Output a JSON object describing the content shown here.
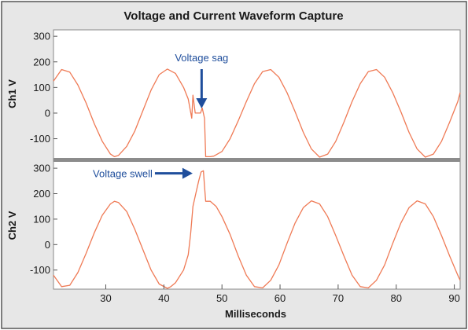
{
  "chart_data": {
    "type": "line",
    "title": "Voltage and Current Waveform Capture",
    "xlabel": "Milliseconds",
    "xlim": [
      21,
      91
    ],
    "x_ticks": [
      30,
      40,
      50,
      60,
      70,
      80,
      90
    ],
    "line_color": "#ef7a55",
    "annotation_color": "#1f4e9c",
    "panels": [
      {
        "ylabel": "Ch1 V",
        "ylim": [
          -175,
          325
        ],
        "y_ticks": [
          300,
          200,
          100,
          0,
          -100
        ],
        "series": [
          {
            "x": [
              21.0,
              22.4,
              23.8,
              25.2,
              26.6,
              28.0,
              29.4,
              30.8,
              31.5,
              32.2,
              33.6,
              35.0,
              36.4,
              37.8,
              39.2,
              40.6,
              42.0,
              43.4,
              44.2,
              44.8,
              45.0,
              45.4,
              45.8,
              46.3,
              46.6,
              47.0,
              47.2,
              47.4,
              48.0,
              48.6,
              50.0,
              51.4,
              52.8,
              54.2,
              55.6,
              57.0,
              58.4,
              59.8,
              61.2,
              62.6,
              64.0,
              65.4,
              66.8,
              68.2,
              69.6,
              71.0,
              72.4,
              73.8,
              75.2,
              76.6,
              78.0,
              79.4,
              80.8,
              82.2,
              83.6,
              85.0,
              86.4,
              87.8,
              89.2,
              90.6,
              91.0
            ],
            "y": [
              125,
              170,
              160,
              110,
              40,
              -40,
              -110,
              -160,
              -170,
              -165,
              -130,
              -70,
              10,
              90,
              150,
              172,
              155,
              100,
              55,
              -20,
              70,
              0,
              0,
              0,
              20,
              -20,
              -170,
              -170,
              -170,
              -168,
              -150,
              -100,
              -30,
              45,
              115,
              162,
              170,
              140,
              80,
              5,
              -75,
              -140,
              -172,
              -160,
              -110,
              -35,
              45,
              115,
              162,
              170,
              140,
              80,
              5,
              -75,
              -140,
              -172,
              -160,
              -110,
              -35,
              45,
              80
            ]
          }
        ],
        "annotation": {
          "text": "Voltage sag",
          "x": 46.5,
          "y": 0
        }
      },
      {
        "ylabel": "Ch2 V",
        "ylim": [
          -175,
          325
        ],
        "y_ticks": [
          300,
          200,
          100,
          0,
          -100
        ],
        "series": [
          {
            "x": [
              21.0,
              22.4,
              23.8,
              25.2,
              26.6,
              28.0,
              29.4,
              30.8,
              31.5,
              32.2,
              33.6,
              35.0,
              36.4,
              37.8,
              39.2,
              40.6,
              41.2,
              42.0,
              43.4,
              44.2,
              44.6,
              45.0,
              45.5,
              46.0,
              46.4,
              46.8,
              47.0,
              47.2,
              48.0,
              49.0,
              50.0,
              51.4,
              52.8,
              54.2,
              55.6,
              57.0,
              58.4,
              59.8,
              61.2,
              62.6,
              64.0,
              65.4,
              66.8,
              68.2,
              69.6,
              71.0,
              72.4,
              73.8,
              75.2,
              76.6,
              78.0,
              79.4,
              80.8,
              82.2,
              83.6,
              85.0,
              86.4,
              87.8,
              89.2,
              90.6,
              91.0
            ],
            "y": [
              -120,
              -165,
              -160,
              -110,
              -35,
              45,
              115,
              160,
              170,
              165,
              130,
              60,
              -20,
              -100,
              -155,
              -172,
              -165,
              -150,
              -100,
              -40,
              40,
              150,
              200,
              250,
              285,
              290,
              230,
              170,
              170,
              150,
              110,
              40,
              -45,
              -120,
              -165,
              -170,
              -140,
              -80,
              5,
              85,
              145,
              172,
              160,
              110,
              35,
              -45,
              -120,
              -165,
              -170,
              -140,
              -80,
              5,
              85,
              145,
              172,
              160,
              110,
              35,
              -45,
              -120,
              -140
            ]
          }
        ],
        "annotation": {
          "text": "Voltage swell",
          "x": 45.5,
          "y": 280
        }
      }
    ]
  }
}
